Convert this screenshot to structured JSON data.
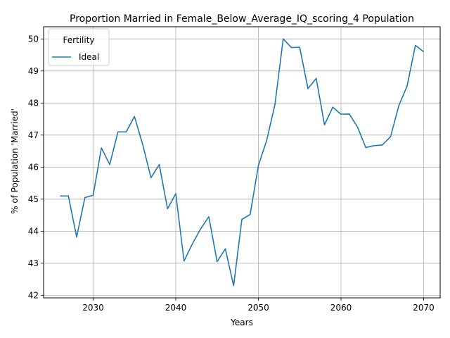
{
  "chart_data": {
    "type": "line",
    "title": "Proportion Married in Female_Below_Average_IQ_scoring_4 Population",
    "xlabel": "Years",
    "ylabel": "% of Population 'Married'",
    "xlim": [
      2024,
      2072
    ],
    "ylim": [
      41.92,
      50.38
    ],
    "x_ticks": [
      2030,
      2040,
      2050,
      2060,
      2070
    ],
    "y_ticks": [
      42,
      43,
      44,
      45,
      46,
      47,
      48,
      49,
      50
    ],
    "grid": true,
    "legend": {
      "title": "Fertility",
      "position": "top-left"
    },
    "series": [
      {
        "name": "Ideal",
        "color": "#1f77b4",
        "x": [
          2026,
          2027,
          2028,
          2029,
          2030,
          2031,
          2032,
          2033,
          2034,
          2035,
          2036,
          2037,
          2038,
          2039,
          2040,
          2041,
          2042,
          2043,
          2044,
          2045,
          2046,
          2047,
          2048,
          2049,
          2050,
          2051,
          2052,
          2053,
          2054,
          2055,
          2056,
          2057,
          2058,
          2059,
          2060,
          2061,
          2062,
          2063,
          2064,
          2065,
          2066,
          2067,
          2068,
          2069,
          2070
        ],
        "y": [
          45.1,
          45.1,
          43.82,
          45.05,
          45.12,
          46.6,
          46.08,
          47.1,
          47.1,
          47.58,
          46.7,
          45.67,
          46.08,
          44.7,
          45.17,
          43.07,
          43.6,
          44.07,
          44.45,
          43.05,
          43.45,
          42.3,
          44.37,
          44.52,
          46.05,
          46.83,
          47.95,
          50.0,
          49.73,
          49.74,
          48.45,
          48.77,
          47.32,
          47.87,
          47.65,
          47.66,
          47.25,
          46.61,
          46.67,
          46.69,
          46.95,
          47.92,
          48.53,
          49.8,
          49.6
        ]
      }
    ]
  }
}
